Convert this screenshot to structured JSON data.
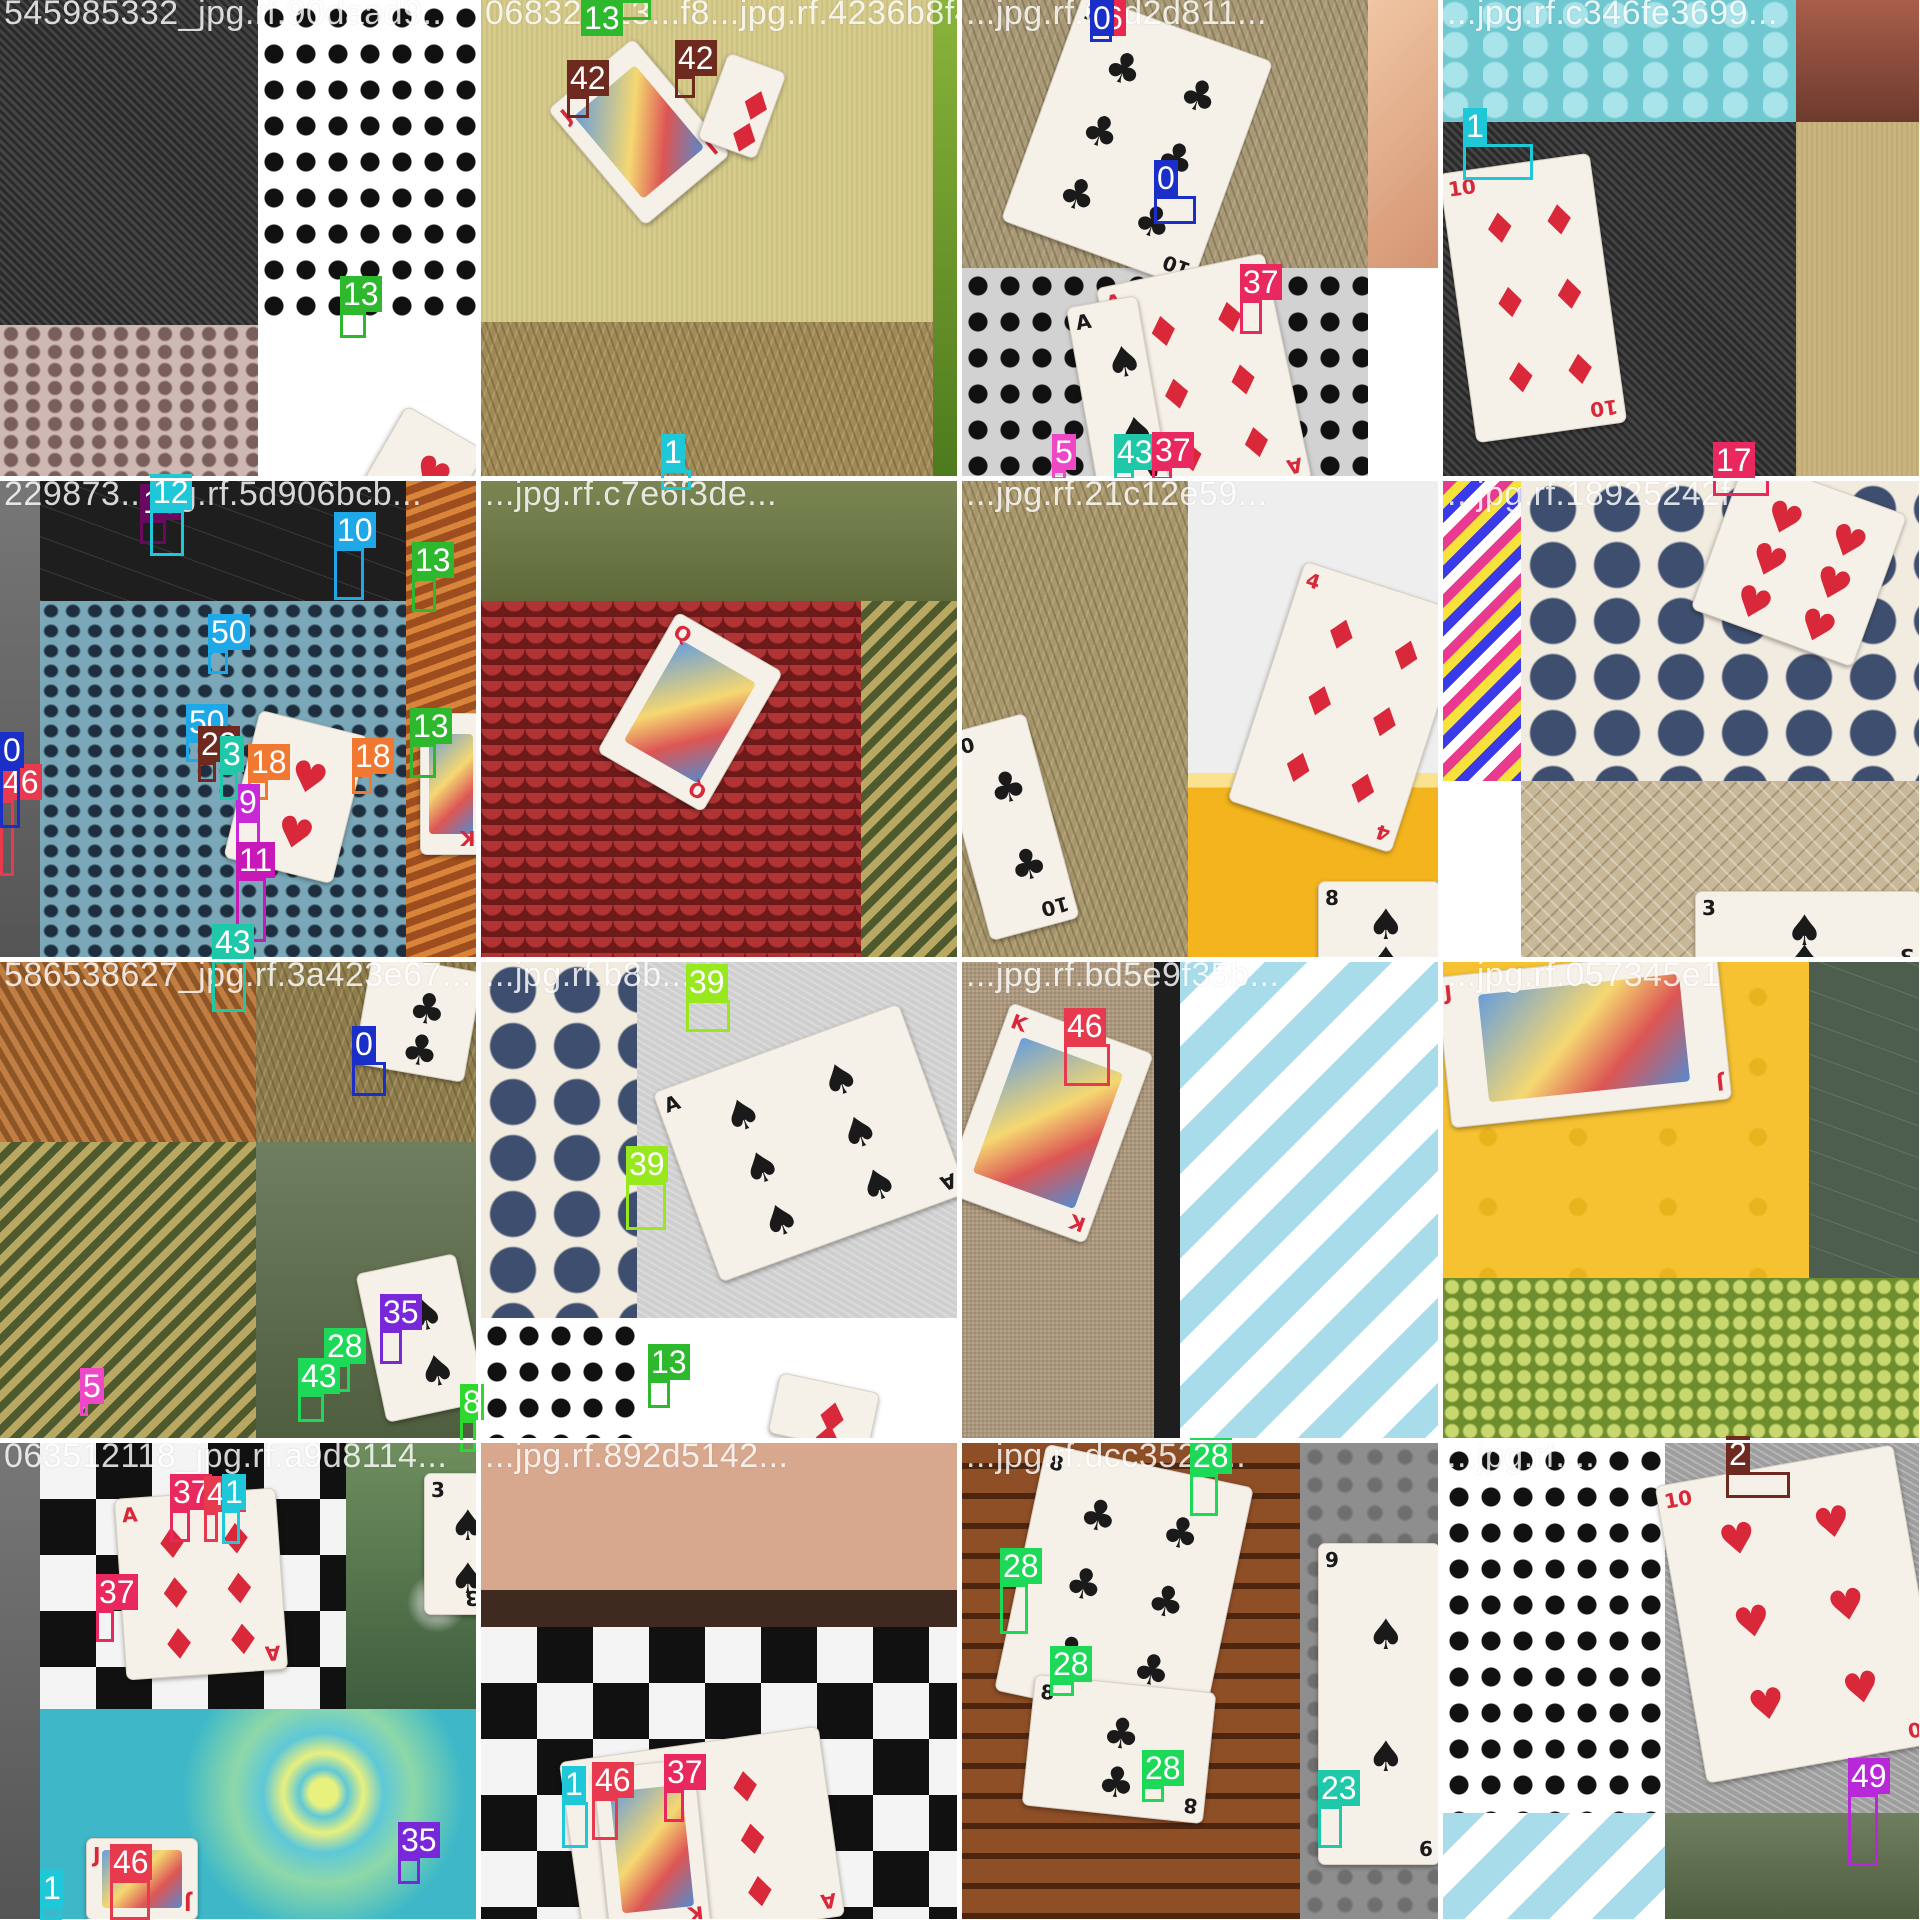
{
  "image": {
    "kind": "object-detection training batch mosaic",
    "grid": "4 x 4",
    "background": "#ffffff"
  },
  "tiles": [
    {
      "caption": "545985332_jpg.rf.90daad9...",
      "regions": [
        {
          "fill": "#3b3b3b",
          "pattern": "dark-weave"
        },
        {
          "fill": "#ffffff",
          "pattern": "black-dots"
        },
        {
          "fill": "#cdb8b4",
          "pattern": "pink-holes"
        },
        {
          "fill": "#ffffff",
          "pattern": "plain"
        }
      ],
      "cards": [
        {
          "rank": "",
          "suit": "♥",
          "color": "#d8283a"
        }
      ],
      "detections": [
        {
          "label": "13",
          "color": "#2eb82e"
        }
      ]
    },
    {
      "caption": "06832...13...f8...jpg.rf.4236b8f4...",
      "regions": [
        {
          "fill": "#d6cb8a",
          "pattern": "linen"
        },
        {
          "fill": "#a08a58",
          "pattern": "dry-grass"
        },
        {
          "fill": "#6e9a2e",
          "pattern": "green"
        }
      ],
      "cards": [
        {
          "rank": "J",
          "suit": "♦",
          "color": "#d8283a"
        },
        {
          "rank": "",
          "suit": "♦",
          "color": "#d8283a"
        }
      ],
      "detections": [
        {
          "label": "13",
          "color": "#2eb82e"
        },
        {
          "label": "42",
          "color": "#6e2a1e"
        },
        {
          "label": "42",
          "color": "#6e2a1e"
        },
        {
          "label": "1",
          "color": "#1fc8d8"
        }
      ]
    },
    {
      "caption": "...jpg.rf.62d2d811...",
      "regions": [
        {
          "fill": "#a89a78",
          "pattern": "dry-grass"
        },
        {
          "fill": "#e3b390",
          "pattern": "peach"
        },
        {
          "fill": "#d2d2d2",
          "pattern": "black-dots"
        },
        {
          "fill": "#ffffff",
          "pattern": "plain"
        }
      ],
      "cards": [
        {
          "rank": "10",
          "suit": "♣",
          "color": "#1a1a1a"
        },
        {
          "rank": "A",
          "suit": "♦",
          "color": "#d8283a"
        },
        {
          "rank": "A",
          "suit": "♠",
          "color": "#1a1a1a"
        }
      ],
      "detections": [
        {
          "label": "6",
          "color": "#e8284e"
        },
        {
          "label": "0",
          "color": "#1a2fc8"
        },
        {
          "label": "0",
          "color": "#1a2fc8"
        },
        {
          "label": "37",
          "color": "#e8285e"
        },
        {
          "label": "5",
          "color": "#ee48c8"
        },
        {
          "label": "43",
          "color": "#1ec8a8"
        },
        {
          "label": "37",
          "color": "#e8285e"
        }
      ]
    },
    {
      "caption": "...jpg.rf.c346fe3699...",
      "regions": [
        {
          "fill": "#6fc8d0",
          "pattern": "cyan"
        },
        {
          "fill": "#8e4d3e",
          "pattern": "brown"
        },
        {
          "fill": "#2e2f2e",
          "pattern": "dark-weave"
        },
        {
          "fill": "#c9b47e",
          "pattern": "linen"
        }
      ],
      "cards": [
        {
          "rank": "10",
          "suit": "♦",
          "color": "#d8283a"
        }
      ],
      "detections": [
        {
          "label": "1",
          "color": "#1fc8d8"
        },
        {
          "label": "17",
          "color": "#e8285e"
        }
      ]
    },
    {
      "caption": "229873...jpg.rf.5d906bcb...",
      "regions": [
        {
          "fill": "#6e6e6e",
          "pattern": "grey"
        },
        {
          "fill": "#1e1e1e",
          "pattern": "web"
        },
        {
          "fill": "#7aa8b8",
          "pattern": "blue-holes"
        },
        {
          "fill": "#b8632a",
          "pattern": "orange-rock"
        }
      ],
      "cards": [
        {
          "rank": "",
          "suit": "♥",
          "color": "#d8283a"
        },
        {
          "rank": "K",
          "suit": "♥",
          "color": "#d8283a"
        }
      ],
      "detections": [
        {
          "label": "16",
          "color": "#6a0a5e"
        },
        {
          "label": "12",
          "color": "#1fc8d8"
        },
        {
          "label": "18",
          "color": "#f07830"
        },
        {
          "label": "18",
          "color": "#f07830"
        },
        {
          "label": "9",
          "color": "#c828d8"
        }
      ]
    },
    {
      "caption": "...jpg.rf.c7e6f3de...",
      "regions": [
        {
          "fill": "#6f7a48",
          "pattern": "olive"
        },
        {
          "fill": "#8e2626",
          "pattern": "red-scales"
        },
        {
          "fill": "#5e6a3e",
          "pattern": "leaves"
        }
      ],
      "cards": [
        {
          "rank": "Q",
          "suit": "♦",
          "color": "#d8283a"
        }
      ],
      "detections": [
        {
          "label": "50",
          "color": "#1ea8e8"
        },
        {
          "label": "50",
          "color": "#1ea8e8"
        },
        {
          "label": "22",
          "color": "#6e2a1e"
        },
        {
          "label": "3",
          "color": "#1ec8a8"
        },
        {
          "label": "46",
          "color": "#e83a4e"
        }
      ]
    },
    {
      "caption": "...jpg.rf.21c12e59...",
      "regions": [
        {
          "fill": "#a8986e",
          "pattern": "dry-grass"
        },
        {
          "fill": "#eeeeee",
          "pattern": "plain"
        },
        {
          "fill": "#f3b41e",
          "pattern": "beer"
        }
      ],
      "cards": [
        {
          "rank": "4",
          "suit": "♦",
          "color": "#d8283a"
        },
        {
          "rank": "10",
          "suit": "♣",
          "color": "#1a1a1a"
        },
        {
          "rank": "8",
          "suit": "♠",
          "color": "#1a1a1a"
        }
      ],
      "detections": [
        {
          "label": "13",
          "color": "#2eb82e"
        },
        {
          "label": "13",
          "color": "#2eb82e"
        },
        {
          "label": "0",
          "color": "#1a2fc8"
        }
      ]
    },
    {
      "caption": "...jpg.rf.18925242f",
      "regions": [
        {
          "fill": "#d83a8e",
          "pattern": "zigzag"
        },
        {
          "fill": "#3e4e6e",
          "pattern": "hex"
        },
        {
          "fill": "#c8b898",
          "pattern": "mesh"
        }
      ],
      "cards": [
        {
          "rank": "",
          "suit": "♥",
          "color": "#d8283a"
        },
        {
          "rank": "3",
          "suit": "♠",
          "color": "#1a1a1a"
        }
      ],
      "detections": [
        {
          "label": "10",
          "color": "#1ea8e8"
        },
        {
          "label": "11",
          "color": "#c818b8"
        },
        {
          "label": "43",
          "color": "#1ec8a8"
        }
      ]
    },
    {
      "caption": "586538627_jpg.rf.3a423e67...",
      "regions": [
        {
          "fill": "#a86e3a",
          "pattern": "knit"
        },
        {
          "fill": "#8e7e4e",
          "pattern": "dry-grass"
        },
        {
          "fill": "#6e6a32",
          "pattern": "leaves"
        },
        {
          "fill": "#5e6e4e",
          "pattern": "grass-blur"
        }
      ],
      "cards": [
        {
          "rank": "",
          "suit": "♣",
          "color": "#1a1a1a"
        },
        {
          "rank": "",
          "suit": "♠",
          "color": "#1a1a1a"
        }
      ],
      "detections": [
        {
          "label": "0",
          "color": "#1a2fc8"
        },
        {
          "label": "35",
          "color": "#7828d8"
        },
        {
          "label": "28",
          "color": "#1ed858"
        },
        {
          "label": "43",
          "color": "#1ed858"
        },
        {
          "label": "5",
          "color": "#ee48c8"
        },
        {
          "label": "8",
          "color": "#2ed82e"
        }
      ]
    },
    {
      "caption": "...jpg.rf.b8b...",
      "regions": [
        {
          "fill": "#3e4a6e",
          "pattern": "hex"
        },
        {
          "fill": "#cfcfcf",
          "pattern": "grey-fabric"
        },
        {
          "fill": "#ffffff",
          "pattern": "black-dots"
        },
        {
          "fill": "#ffffff",
          "pattern": "plain"
        }
      ],
      "cards": [
        {
          "rank": "A",
          "suit": "♠",
          "color": "#1a1a1a"
        },
        {
          "rank": "",
          "suit": "♦",
          "color": "#d8283a"
        }
      ],
      "detections": [
        {
          "label": "39",
          "color": "#98e81e"
        },
        {
          "label": "39",
          "color": "#98e81e"
        },
        {
          "label": "13",
          "color": "#2eb82e"
        }
      ]
    },
    {
      "caption": "...jpg.rf.bd5e9f35b...",
      "regions": [
        {
          "fill": "#b8a488",
          "pattern": "burlap"
        },
        {
          "fill": "#1e1e1e",
          "pattern": "black"
        },
        {
          "fill": "#a8dceb",
          "pattern": "chevron"
        }
      ],
      "cards": [
        {
          "rank": "K",
          "suit": "♦",
          "color": "#d8283a"
        }
      ],
      "detections": [
        {
          "label": "46",
          "color": "#e83a4e"
        }
      ]
    },
    {
      "caption": "...jpg.rf.057345e1",
      "regions": [
        {
          "fill": "#f6c232",
          "pattern": "yellow"
        },
        {
          "fill": "#4e5e4e",
          "pattern": "web"
        },
        {
          "fill": "#9eb84e",
          "pattern": "succulents"
        }
      ],
      "cards": [
        {
          "rank": "J",
          "suit": "♥",
          "color": "#d8283a"
        }
      ],
      "detections": []
    },
    {
      "caption": "063512118_jpg.rf.a9d8114...",
      "regions": [
        {
          "fill": "#6e6e6e",
          "pattern": "grey"
        },
        {
          "fill": "#111111",
          "pattern": "checker"
        },
        {
          "fill": "#5e7e4e",
          "pattern": "dandelion"
        },
        {
          "fill": "#58c8b8",
          "pattern": "swirl"
        }
      ],
      "cards": [
        {
          "rank": "A",
          "suit": "♦",
          "color": "#d8283a"
        },
        {
          "rank": "3",
          "suit": "♠",
          "color": "#1a1a1a"
        },
        {
          "rank": "J",
          "suit": "♦",
          "color": "#d8283a"
        }
      ],
      "detections": [
        {
          "label": "37",
          "color": "#e8285e"
        },
        {
          "label": "46",
          "color": "#e83a4e"
        },
        {
          "label": "1",
          "color": "#1fc8d8"
        },
        {
          "label": "37",
          "color": "#e8285e"
        },
        {
          "label": "1",
          "color": "#1fc8d8"
        },
        {
          "label": "46",
          "color": "#e83a4e"
        },
        {
          "label": "35",
          "color": "#7828d8"
        }
      ]
    },
    {
      "caption": "...jpg.rf.892d5142...",
      "regions": [
        {
          "fill": "#b88a6e",
          "pattern": "face"
        },
        {
          "fill": "#111111",
          "pattern": "checker"
        }
      ],
      "cards": [
        {
          "rank": "A",
          "suit": "♦",
          "color": "#d8283a"
        },
        {
          "rank": "K",
          "suit": "♦",
          "color": "#d8283a"
        }
      ],
      "detections": [
        {
          "label": "1",
          "color": "#1fc8d8"
        },
        {
          "label": "46",
          "color": "#e83a4e"
        },
        {
          "label": "37",
          "color": "#e8285e"
        }
      ]
    },
    {
      "caption": "...jpg.rf.dcc3524...",
      "regions": [
        {
          "fill": "#6e3a1e",
          "pattern": "waffle"
        },
        {
          "fill": "#8e8e8e",
          "pattern": "moon"
        }
      ],
      "cards": [
        {
          "rank": "8",
          "suit": "♣",
          "color": "#1a1a1a"
        },
        {
          "rank": "8",
          "suit": "♣",
          "color": "#1a1a1a"
        },
        {
          "rank": "9",
          "suit": "♠",
          "color": "#1a1a1a"
        }
      ],
      "detections": [
        {
          "label": "28",
          "color": "#1ed858"
        },
        {
          "label": "28",
          "color": "#1ed858"
        },
        {
          "label": "28",
          "color": "#1ed858"
        },
        {
          "label": "28",
          "color": "#1ed858"
        },
        {
          "label": "23",
          "color": "#1ec8a8"
        }
      ]
    },
    {
      "caption": "...jpg.rf....",
      "regions": [
        {
          "fill": "#ffffff",
          "pattern": "black-dots"
        },
        {
          "fill": "#9e9e9e",
          "pattern": "grey-fabric"
        },
        {
          "fill": "#a8dceb",
          "pattern": "chevron"
        },
        {
          "fill": "#5e6e5e",
          "pattern": "grass-blur"
        }
      ],
      "cards": [
        {
          "rank": "10",
          "suit": "♥",
          "color": "#d8283a"
        }
      ],
      "detections": [
        {
          "label": "2",
          "color": "#6e2a1e"
        },
        {
          "label": "49",
          "color": "#b828d8"
        }
      ]
    }
  ]
}
